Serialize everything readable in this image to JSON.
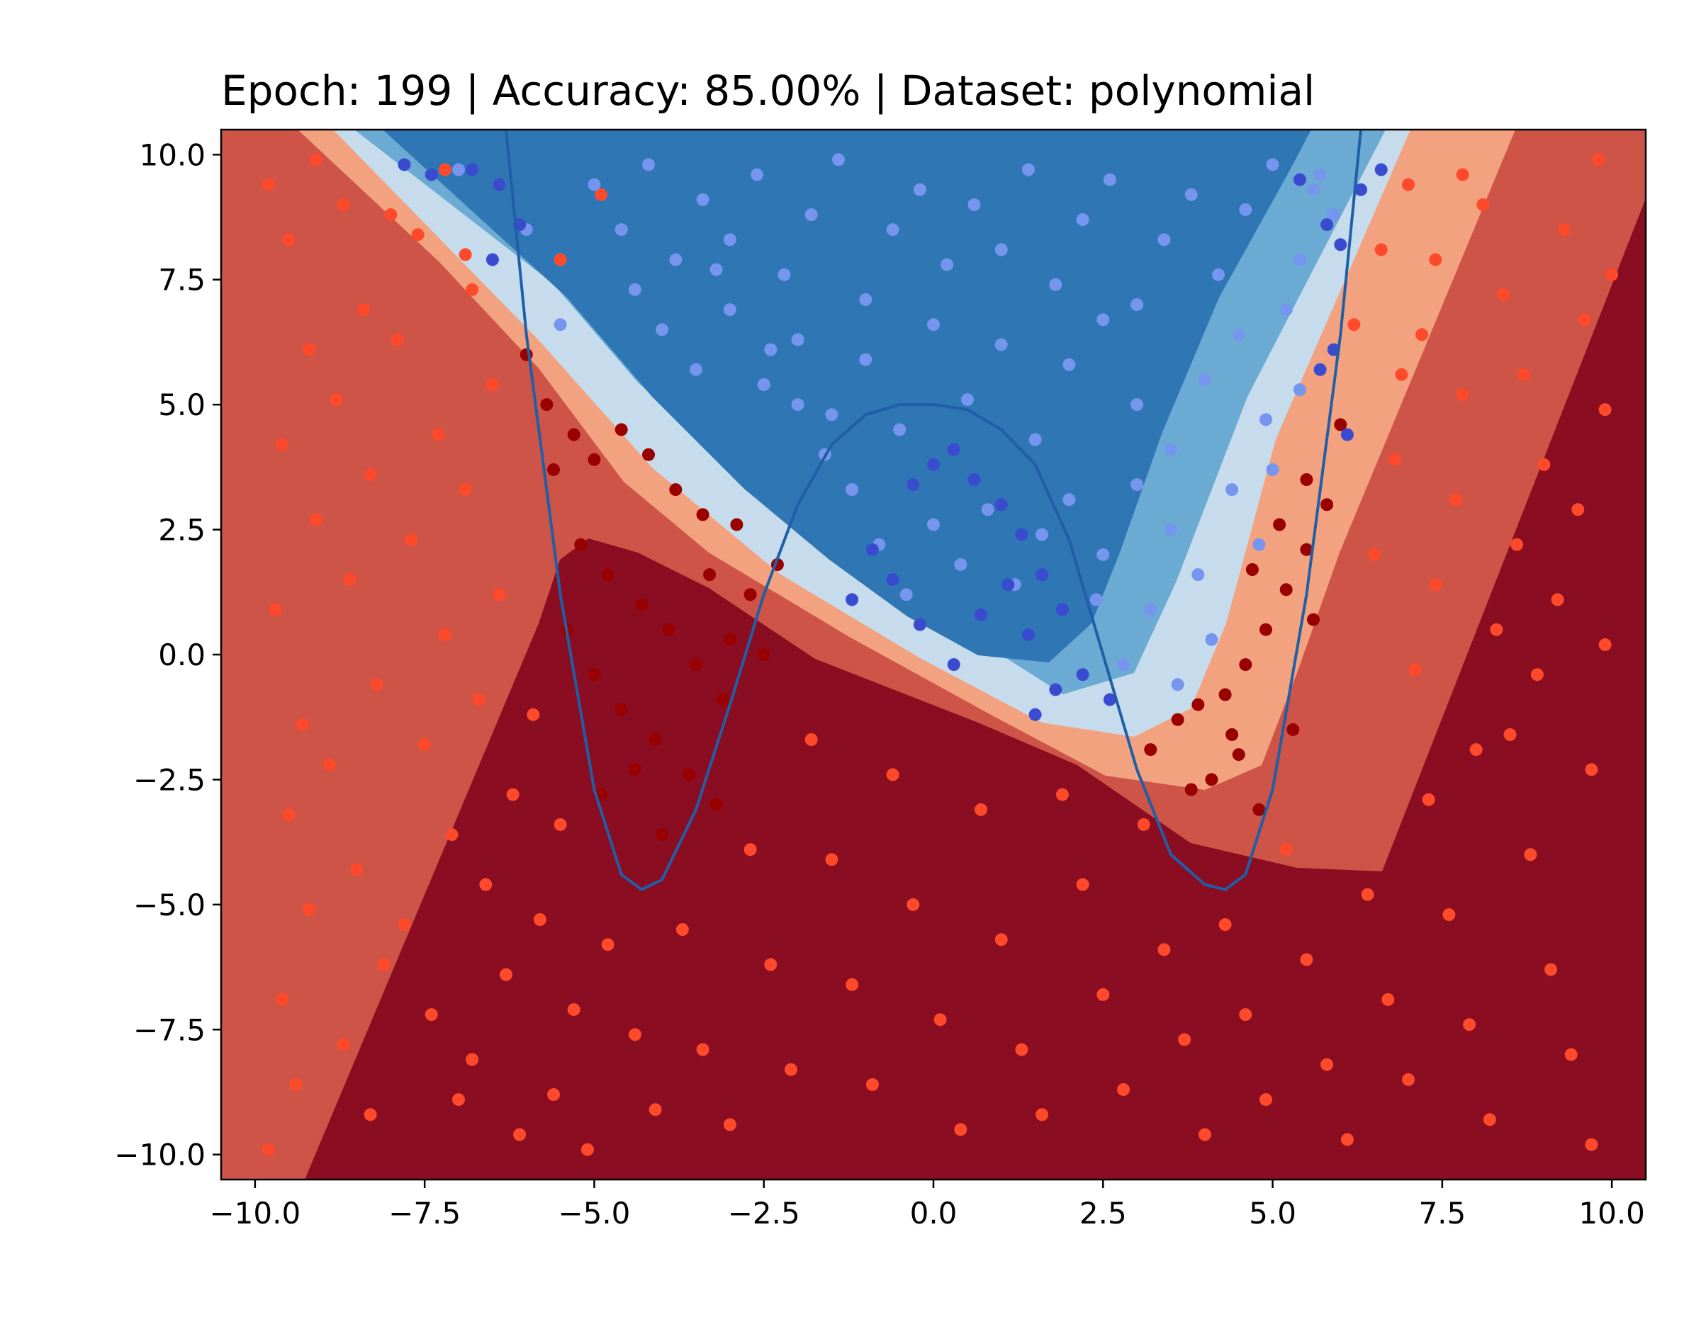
{
  "chart_data": {
    "type": "scatter",
    "title": "Epoch: 199 | Accuracy: 85.00% | Dataset: polynomial",
    "xlabel": "",
    "ylabel": "",
    "xlim": [
      -10.5,
      10.5
    ],
    "ylim": [
      -10.5,
      10.5
    ],
    "grid": false,
    "x_ticks": [
      -10.0,
      -7.5,
      -5.0,
      -2.5,
      0.0,
      2.5,
      5.0,
      7.5,
      10.0
    ],
    "y_ticks": [
      -10.0,
      -7.5,
      -5.0,
      -2.5,
      0.0,
      2.5,
      5.0,
      7.5,
      10.0
    ],
    "x_tick_labels": [
      "−10.0",
      "−7.5",
      "−5.0",
      "−2.5",
      "0.0",
      "2.5",
      "5.0",
      "7.5",
      "10.0"
    ],
    "y_tick_labels": [
      "−10.0",
      "−7.5",
      "−5.0",
      "−2.5",
      "0.0",
      "2.5",
      "5.0",
      "7.5",
      "10.0"
    ],
    "background_regions": {
      "description_colors": [
        "#8b0d22",
        "#cd5446",
        "#f3a27f",
        "#c6dcec",
        "#6aaad3",
        "#2f76b5"
      ]
    },
    "curve": {
      "color": "#1f5fa8",
      "x": [
        -6.3,
        -6.0,
        -5.5,
        -5.0,
        -4.6,
        -4.3,
        -4.0,
        -3.5,
        -3.0,
        -2.5,
        -2.0,
        -1.5,
        -1.0,
        -0.5,
        0.0,
        0.5,
        1.0,
        1.5,
        2.0,
        2.5,
        3.0,
        3.5,
        4.0,
        4.3,
        4.6,
        5.0,
        5.5,
        6.0,
        6.3
      ],
      "y": [
        10.5,
        6.4,
        1.2,
        -2.7,
        -4.4,
        -4.7,
        -4.5,
        -3.1,
        -1.0,
        1.2,
        3.0,
        4.2,
        4.8,
        5.0,
        5.0,
        4.9,
        4.5,
        3.8,
        2.3,
        0.0,
        -2.3,
        -4.0,
        -4.6,
        -4.7,
        -4.4,
        -2.7,
        1.2,
        6.4,
        10.5
      ]
    },
    "series": [
      {
        "class": "negative",
        "color": "#fe4a2b",
        "points": [
          [
            -9.8,
            9.4
          ],
          [
            -9.5,
            8.3
          ],
          [
            -9.2,
            6.1
          ],
          [
            -9.6,
            4.2
          ],
          [
            -9.1,
            2.7
          ],
          [
            -9.7,
            0.9
          ],
          [
            -9.3,
            -1.4
          ],
          [
            -9.5,
            -3.2
          ],
          [
            -9.2,
            -5.1
          ],
          [
            -9.6,
            -6.9
          ],
          [
            -9.4,
            -8.6
          ],
          [
            -9.8,
            -9.9
          ],
          [
            -8.7,
            9.0
          ],
          [
            -8.4,
            6.9
          ],
          [
            -8.8,
            5.1
          ],
          [
            -8.3,
            3.6
          ],
          [
            -8.6,
            1.5
          ],
          [
            -8.2,
            -0.6
          ],
          [
            -8.9,
            -2.2
          ],
          [
            -8.5,
            -4.3
          ],
          [
            -8.1,
            -6.2
          ],
          [
            -8.7,
            -7.8
          ],
          [
            -8.3,
            -9.2
          ],
          [
            -7.6,
            8.4
          ],
          [
            -7.9,
            6.3
          ],
          [
            -7.3,
            4.4
          ],
          [
            -7.7,
            2.3
          ],
          [
            -7.2,
            0.4
          ],
          [
            -7.5,
            -1.8
          ],
          [
            -7.1,
            -3.6
          ],
          [
            -7.8,
            -5.4
          ],
          [
            -7.4,
            -7.2
          ],
          [
            -7.0,
            -8.9
          ],
          [
            -6.8,
            7.3
          ],
          [
            -6.5,
            5.4
          ],
          [
            -6.9,
            3.3
          ],
          [
            -6.4,
            1.2
          ],
          [
            -6.7,
            -0.9
          ],
          [
            -6.2,
            -2.8
          ],
          [
            -6.6,
            -4.6
          ],
          [
            -6.3,
            -6.4
          ],
          [
            -6.8,
            -8.1
          ],
          [
            -6.1,
            -9.6
          ],
          [
            -5.9,
            -1.2
          ],
          [
            -5.5,
            -3.4
          ],
          [
            -5.8,
            -5.3
          ],
          [
            -5.3,
            -7.1
          ],
          [
            -5.6,
            -8.8
          ],
          [
            -5.1,
            -9.9
          ],
          [
            -4.8,
            -5.8
          ],
          [
            -4.4,
            -7.6
          ],
          [
            -4.1,
            -9.1
          ],
          [
            -3.7,
            -5.5
          ],
          [
            -3.4,
            -7.9
          ],
          [
            -3.0,
            -9.4
          ],
          [
            -2.7,
            -3.9
          ],
          [
            -2.4,
            -6.2
          ],
          [
            -2.1,
            -8.3
          ],
          [
            -1.8,
            -1.7
          ],
          [
            -1.5,
            -4.1
          ],
          [
            -1.2,
            -6.6
          ],
          [
            -0.9,
            -8.6
          ],
          [
            -0.6,
            -2.4
          ],
          [
            -0.3,
            -5.0
          ],
          [
            0.1,
            -7.3
          ],
          [
            0.4,
            -9.5
          ],
          [
            0.7,
            -3.1
          ],
          [
            1.0,
            -5.7
          ],
          [
            1.3,
            -7.9
          ],
          [
            1.6,
            -9.2
          ],
          [
            1.9,
            -2.8
          ],
          [
            2.2,
            -4.6
          ],
          [
            2.5,
            -6.8
          ],
          [
            2.8,
            -8.7
          ],
          [
            3.1,
            -3.4
          ],
          [
            3.4,
            -5.9
          ],
          [
            3.7,
            -7.7
          ],
          [
            4.0,
            -9.6
          ],
          [
            4.3,
            -5.4
          ],
          [
            4.6,
            -7.2
          ],
          [
            4.9,
            -8.9
          ],
          [
            5.2,
            -3.9
          ],
          [
            5.5,
            -6.1
          ],
          [
            5.8,
            -8.2
          ],
          [
            6.1,
            -9.7
          ],
          [
            6.4,
            -4.8
          ],
          [
            6.7,
            -6.9
          ],
          [
            7.0,
            -8.5
          ],
          [
            7.3,
            -2.9
          ],
          [
            7.6,
            -5.2
          ],
          [
            7.9,
            -7.4
          ],
          [
            8.2,
            -9.3
          ],
          [
            8.5,
            -1.6
          ],
          [
            8.8,
            -4.0
          ],
          [
            9.1,
            -6.3
          ],
          [
            9.4,
            -8.0
          ],
          [
            9.7,
            -9.8
          ],
          [
            7.0,
            9.4
          ],
          [
            7.4,
            7.9
          ],
          [
            7.2,
            6.4
          ],
          [
            7.8,
            5.2
          ],
          [
            8.1,
            9.0
          ],
          [
            8.4,
            7.2
          ],
          [
            8.7,
            5.6
          ],
          [
            9.0,
            3.8
          ],
          [
            9.3,
            8.5
          ],
          [
            9.6,
            6.7
          ],
          [
            9.9,
            4.9
          ],
          [
            9.5,
            2.9
          ],
          [
            9.2,
            1.1
          ],
          [
            8.9,
            -0.4
          ],
          [
            8.6,
            2.2
          ],
          [
            8.3,
            0.5
          ],
          [
            8.0,
            -1.9
          ],
          [
            7.7,
            3.1
          ],
          [
            7.4,
            1.4
          ],
          [
            7.1,
            -0.3
          ],
          [
            6.8,
            3.9
          ],
          [
            6.5,
            2.0
          ],
          [
            6.9,
            5.6
          ],
          [
            6.2,
            6.6
          ],
          [
            6.6,
            8.1
          ],
          [
            7.8,
            9.6
          ],
          [
            9.8,
            9.9
          ],
          [
            10.0,
            7.6
          ],
          [
            9.9,
            0.2
          ],
          [
            9.7,
            -2.3
          ],
          [
            -4.9,
            9.2
          ],
          [
            -7.2,
            9.7
          ],
          [
            -9.1,
            9.9
          ],
          [
            -8.0,
            8.8
          ],
          [
            -6.9,
            8.0
          ],
          [
            -5.5,
            7.9
          ]
        ]
      },
      {
        "class": "negative-core",
        "color": "#990000",
        "points": [
          [
            -6.0,
            6.0
          ],
          [
            -5.7,
            5.0
          ],
          [
            -5.3,
            4.4
          ],
          [
            -5.6,
            3.7
          ],
          [
            -5.0,
            3.9
          ],
          [
            -4.6,
            4.5
          ],
          [
            -4.2,
            4.0
          ],
          [
            -3.8,
            3.3
          ],
          [
            -3.4,
            2.8
          ],
          [
            -2.9,
            2.6
          ],
          [
            -5.2,
            2.2
          ],
          [
            -4.8,
            1.6
          ],
          [
            -4.3,
            1.0
          ],
          [
            -3.9,
            0.5
          ],
          [
            -3.5,
            -0.2
          ],
          [
            -3.1,
            -0.9
          ],
          [
            -2.7,
            1.2
          ],
          [
            -2.3,
            1.8
          ],
          [
            -5.4,
            0.5
          ],
          [
            -5.0,
            -0.4
          ],
          [
            -4.6,
            -1.1
          ],
          [
            -4.1,
            -1.7
          ],
          [
            -3.6,
            -2.4
          ],
          [
            -3.2,
            -3.0
          ],
          [
            -4.0,
            -3.6
          ],
          [
            -4.4,
            -2.3
          ],
          [
            -4.9,
            -2.8
          ],
          [
            -3.3,
            1.6
          ],
          [
            -2.5,
            0.0
          ],
          [
            -3.0,
            0.3
          ],
          [
            3.2,
            -1.9
          ],
          [
            3.6,
            -1.3
          ],
          [
            3.9,
            -1.0
          ],
          [
            4.3,
            -0.8
          ],
          [
            4.6,
            -0.2
          ],
          [
            4.9,
            0.5
          ],
          [
            5.2,
            1.3
          ],
          [
            5.5,
            2.1
          ],
          [
            5.8,
            3.0
          ],
          [
            6.0,
            4.6
          ],
          [
            5.5,
            3.5
          ],
          [
            5.1,
            2.6
          ],
          [
            4.7,
            1.7
          ],
          [
            4.4,
            -1.6
          ],
          [
            4.1,
            -2.5
          ],
          [
            4.8,
            -3.1
          ],
          [
            5.3,
            -1.5
          ],
          [
            5.6,
            0.7
          ],
          [
            3.8,
            -2.7
          ],
          [
            4.5,
            -2.0
          ]
        ]
      },
      {
        "class": "positive",
        "color": "#7595ef",
        "points": [
          [
            -5.0,
            9.4
          ],
          [
            -4.6,
            8.5
          ],
          [
            -4.2,
            9.8
          ],
          [
            -3.8,
            7.9
          ],
          [
            -3.4,
            9.1
          ],
          [
            -3.0,
            8.3
          ],
          [
            -2.6,
            9.6
          ],
          [
            -2.2,
            7.6
          ],
          [
            -1.8,
            8.8
          ],
          [
            -1.4,
            9.9
          ],
          [
            -1.0,
            7.1
          ],
          [
            -0.6,
            8.5
          ],
          [
            -0.2,
            9.3
          ],
          [
            0.2,
            7.8
          ],
          [
            0.6,
            9.0
          ],
          [
            1.0,
            8.1
          ],
          [
            1.4,
            9.7
          ],
          [
            1.8,
            7.4
          ],
          [
            2.2,
            8.7
          ],
          [
            2.6,
            9.5
          ],
          [
            3.0,
            7.0
          ],
          [
            3.4,
            8.3
          ],
          [
            3.8,
            9.2
          ],
          [
            4.2,
            7.6
          ],
          [
            4.6,
            8.9
          ],
          [
            5.0,
            9.8
          ],
          [
            5.4,
            7.9
          ],
          [
            5.6,
            9.3
          ],
          [
            -4.0,
            6.5
          ],
          [
            -3.5,
            5.7
          ],
          [
            -3.0,
            6.9
          ],
          [
            -2.5,
            5.4
          ],
          [
            -2.0,
            6.3
          ],
          [
            -1.5,
            4.8
          ],
          [
            -1.0,
            5.9
          ],
          [
            -0.5,
            4.5
          ],
          [
            0.0,
            6.6
          ],
          [
            0.5,
            5.1
          ],
          [
            1.0,
            6.2
          ],
          [
            1.5,
            4.3
          ],
          [
            2.0,
            5.8
          ],
          [
            2.5,
            6.7
          ],
          [
            3.0,
            5.0
          ],
          [
            3.5,
            4.1
          ],
          [
            4.0,
            5.5
          ],
          [
            4.5,
            6.4
          ],
          [
            5.0,
            3.7
          ],
          [
            4.8,
            2.2
          ],
          [
            4.4,
            3.3
          ],
          [
            3.9,
            1.6
          ],
          [
            3.5,
            2.5
          ],
          [
            3.0,
            3.4
          ],
          [
            2.5,
            2.0
          ],
          [
            2.0,
            3.1
          ],
          [
            1.6,
            2.4
          ],
          [
            1.2,
            1.4
          ],
          [
            0.8,
            2.9
          ],
          [
            0.4,
            1.8
          ],
          [
            0.0,
            2.6
          ],
          [
            -0.4,
            1.2
          ],
          [
            -0.8,
            2.2
          ],
          [
            -1.2,
            3.3
          ],
          [
            -1.6,
            4.0
          ],
          [
            -2.0,
            5.0
          ],
          [
            -2.4,
            6.1
          ],
          [
            4.1,
            0.3
          ],
          [
            3.6,
            -0.6
          ],
          [
            3.2,
            0.9
          ],
          [
            2.8,
            -0.2
          ],
          [
            2.4,
            1.1
          ],
          [
            5.7,
            9.6
          ],
          [
            5.9,
            8.8
          ],
          [
            5.2,
            6.9
          ],
          [
            5.4,
            5.3
          ],
          [
            4.9,
            4.7
          ],
          [
            -5.5,
            6.6
          ],
          [
            -6.0,
            8.5
          ],
          [
            -7.0,
            9.7
          ],
          [
            -4.4,
            7.3
          ],
          [
            -3.2,
            7.7
          ]
        ]
      },
      {
        "class": "positive-core",
        "color": "#3a4bd0",
        "points": [
          [
            -7.8,
            9.8
          ],
          [
            -7.4,
            9.6
          ],
          [
            -6.8,
            9.7
          ],
          [
            -6.4,
            9.4
          ],
          [
            -6.1,
            8.6
          ],
          [
            -6.5,
            7.9
          ],
          [
            0.0,
            3.8
          ],
          [
            -0.3,
            3.4
          ],
          [
            0.3,
            4.1
          ],
          [
            0.6,
            3.5
          ],
          [
            1.0,
            3.0
          ],
          [
            1.3,
            2.4
          ],
          [
            1.6,
            1.6
          ],
          [
            1.9,
            0.9
          ],
          [
            1.4,
            0.4
          ],
          [
            1.1,
            1.4
          ],
          [
            0.7,
            0.8
          ],
          [
            0.3,
            -0.2
          ],
          [
            -0.2,
            0.6
          ],
          [
            -0.6,
            1.5
          ],
          [
            -0.9,
            2.1
          ],
          [
            -1.2,
            1.1
          ],
          [
            1.8,
            -0.7
          ],
          [
            2.2,
            -0.4
          ],
          [
            2.6,
            -0.9
          ],
          [
            1.5,
            -1.2
          ],
          [
            6.3,
            9.3
          ],
          [
            6.6,
            9.7
          ],
          [
            6.0,
            8.2
          ],
          [
            5.9,
            6.1
          ],
          [
            5.7,
            5.7
          ],
          [
            6.1,
            4.4
          ],
          [
            5.4,
            9.5
          ],
          [
            5.8,
            8.6
          ]
        ]
      }
    ]
  }
}
